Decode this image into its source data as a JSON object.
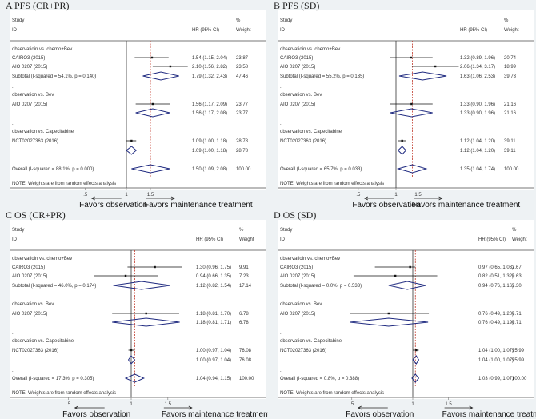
{
  "colors": {
    "diamond": "#1f2a80",
    "ref_line": "#c0392b",
    "ci": "#111111",
    "background": "#eef2f4"
  },
  "chart_data": [
    {
      "type": "forest",
      "title": "A  PFS  (CR+PR)",
      "header": {
        "study": "Study",
        "id": "ID",
        "hr": "HR (95% CI)",
        "pct": "%",
        "weight": "Weight"
      },
      "xticks": [
        {
          "v": 0.5,
          "label": ".5"
        },
        {
          "v": 1,
          "label": "1"
        },
        {
          "v": 1.5,
          "label": "1.5"
        }
      ],
      "xscale": "log",
      "favors_left": "Favors observation",
      "favors_right": "Favors maintenance treatment",
      "note": "NOTE: Weights are from random effects analysis",
      "rows": [
        {
          "type": "group",
          "label": "observatioin vs. chemo+Bev"
        },
        {
          "type": "study",
          "label": "CAIRO3 (2015)",
          "hr": 1.54,
          "lo": 1.15,
          "hi": 2.04,
          "text": "1.54 (1.15, 2.04)",
          "weight": "23.87"
        },
        {
          "type": "study",
          "label": "AIO 0207 (2015)",
          "hr": 2.1,
          "lo": 1.56,
          "hi": 2.82,
          "text": "2.10 (1.56, 2.82)",
          "weight": "23.58"
        },
        {
          "type": "subtotal",
          "label": "Subtotal  (I-squared = 54.1%, p = 0.140)",
          "hr": 1.79,
          "lo": 1.32,
          "hi": 2.43,
          "text": "1.79 (1.32, 2.43)",
          "weight": "47.46"
        },
        {
          "type": "spacer",
          "label": "."
        },
        {
          "type": "group",
          "label": "observation vs. Bev"
        },
        {
          "type": "study",
          "label": "AIO 0207 (2015)",
          "hr": 1.56,
          "lo": 1.17,
          "hi": 2.09,
          "text": "1.56 (1.17, 2.09)",
          "weight": "23.77"
        },
        {
          "type": "subtotal",
          "label": "",
          "hr": 1.56,
          "lo": 1.17,
          "hi": 2.08,
          "text": "1.56 (1.17, 2.08)",
          "weight": "23.77"
        },
        {
          "type": "spacer",
          "label": "."
        },
        {
          "type": "group",
          "label": "observation vs.  Capecitabine"
        },
        {
          "type": "study",
          "label": "NCT02027363 (2016)",
          "hr": 1.09,
          "lo": 1.0,
          "hi": 1.18,
          "text": "1.09 (1.00, 1.18)",
          "weight": "28.78"
        },
        {
          "type": "subtotal",
          "label": "",
          "hr": 1.09,
          "lo": 1.0,
          "hi": 1.18,
          "text": "1.09 (1.00, 1.18)",
          "weight": "28.78"
        },
        {
          "type": "spacer",
          "label": "."
        },
        {
          "type": "overall",
          "label": "Overall  (I-squared = 88.1%, p = 0.000)",
          "hr": 1.5,
          "lo": 1.09,
          "hi": 2.08,
          "text": "1.50 (1.09, 2.08)",
          "weight": "100.00"
        }
      ]
    },
    {
      "type": "forest",
      "title": "B  PFS  (SD)",
      "header": {
        "study": "Study",
        "id": "ID",
        "hr": "HR (95% CI)",
        "pct": "%",
        "weight": "Weight"
      },
      "xticks": [
        {
          "v": 0.5,
          "label": ".5"
        },
        {
          "v": 1,
          "label": "1"
        },
        {
          "v": 1.5,
          "label": "1.5"
        }
      ],
      "xscale": "log",
      "favors_left": "Favors observation",
      "favors_right": "Favors maintenance treatment",
      "note": "NOTE: Weights are from random effects analysis",
      "rows": [
        {
          "type": "group",
          "label": "observatioin vs. chemo+Bev"
        },
        {
          "type": "study",
          "label": "CAIRO3 (2015)",
          "hr": 1.32,
          "lo": 0.89,
          "hi": 1.96,
          "text": "1.32 (0.89, 1.96)",
          "weight": "20.74"
        },
        {
          "type": "study",
          "label": "AIO 0207 (2015)",
          "hr": 2.06,
          "lo": 1.34,
          "hi": 3.17,
          "text": "2.06 (1.34, 3.17)",
          "weight": "18.99"
        },
        {
          "type": "subtotal",
          "label": "Subtotal  (I-squared = 55.2%, p = 0.135)",
          "hr": 1.63,
          "lo": 1.06,
          "hi": 2.53,
          "text": "1.63 (1.06, 2.53)",
          "weight": "39.73"
        },
        {
          "type": "spacer",
          "label": "."
        },
        {
          "type": "group",
          "label": "observation vs. Bev"
        },
        {
          "type": "study",
          "label": "AIO 0207 (2015)",
          "hr": 1.33,
          "lo": 0.9,
          "hi": 1.96,
          "text": "1.33 (0.90, 1.96)",
          "weight": "21.16"
        },
        {
          "type": "subtotal",
          "label": "",
          "hr": 1.33,
          "lo": 0.9,
          "hi": 1.96,
          "text": "1.33 (0.90, 1.96)",
          "weight": "21.16"
        },
        {
          "type": "spacer",
          "label": "."
        },
        {
          "type": "group",
          "label": "observation vs.  Capecitabine"
        },
        {
          "type": "study",
          "label": "NCT02027363 (2016)",
          "hr": 1.12,
          "lo": 1.04,
          "hi": 1.2,
          "text": "1.12 (1.04, 1.20)",
          "weight": "39.11"
        },
        {
          "type": "subtotal",
          "label": "",
          "hr": 1.12,
          "lo": 1.04,
          "hi": 1.2,
          "text": "1.12 (1.04, 1.20)",
          "weight": "39.11"
        },
        {
          "type": "spacer",
          "label": "."
        },
        {
          "type": "overall",
          "label": "Overall  (I-squared = 65.7%, p = 0.033)",
          "hr": 1.35,
          "lo": 1.04,
          "hi": 1.74,
          "text": "1.35 (1.04, 1.74)",
          "weight": "100.00"
        }
      ]
    },
    {
      "type": "forest",
      "title": "C  OS  (CR+PR)",
      "header": {
        "study": "Study",
        "id": "ID",
        "hr": "HR (95% CI)",
        "pct": "%",
        "weight": "Weight"
      },
      "xticks": [
        {
          "v": 0.5,
          "label": ".5"
        },
        {
          "v": 1,
          "label": "1"
        },
        {
          "v": 1.5,
          "label": "1.5"
        }
      ],
      "xscale": "log",
      "favors_left": "Favors observation",
      "favors_right": "Favors maintenance treatment",
      "note": "NOTE: Weights are from random effects analysis",
      "rows": [
        {
          "type": "group",
          "label": "observatioin vs. chemo+Bev"
        },
        {
          "type": "study",
          "label": "CAIRO3 (2015)",
          "hr": 1.3,
          "lo": 0.96,
          "hi": 1.75,
          "text": "1.30 (0.96, 1.75)",
          "weight": "9.91"
        },
        {
          "type": "study",
          "label": "AIO 0207 (2015)",
          "hr": 0.94,
          "lo": 0.66,
          "hi": 1.35,
          "text": "0.94 (0.66, 1.35)",
          "weight": "7.23"
        },
        {
          "type": "subtotal",
          "label": "Subtotal  (I-squared = 46.0%, p = 0.174)",
          "hr": 1.12,
          "lo": 0.82,
          "hi": 1.54,
          "text": "1.12 (0.82, 1.54)",
          "weight": "17.14"
        },
        {
          "type": "spacer",
          "label": "."
        },
        {
          "type": "group",
          "label": "observation vs. Bev"
        },
        {
          "type": "study",
          "label": "AIO 0207 (2015)",
          "hr": 1.18,
          "lo": 0.81,
          "hi": 1.7,
          "text": "1.18 (0.81, 1.70)",
          "weight": "6.78"
        },
        {
          "type": "subtotal",
          "label": "",
          "hr": 1.18,
          "lo": 0.81,
          "hi": 1.71,
          "text": "1.18 (0.81, 1.71)",
          "weight": "6.78"
        },
        {
          "type": "spacer",
          "label": "."
        },
        {
          "type": "group",
          "label": "observation vs.  Capecitabine"
        },
        {
          "type": "study",
          "label": "NCT02027363 (2016)",
          "hr": 1.0,
          "lo": 0.97,
          "hi": 1.04,
          "text": "1.00 (0.97, 1.04)",
          "weight": "76.08"
        },
        {
          "type": "subtotal",
          "label": "",
          "hr": 1.0,
          "lo": 0.97,
          "hi": 1.04,
          "text": "1.00 (0.97, 1.04)",
          "weight": "76.08"
        },
        {
          "type": "spacer",
          "label": "."
        },
        {
          "type": "overall",
          "label": "Overall  (I-squared = 17.3%, p = 0.305)",
          "hr": 1.04,
          "lo": 0.94,
          "hi": 1.15,
          "text": "1.04 (0.94, 1.15)",
          "weight": "100.00"
        }
      ]
    },
    {
      "type": "forest",
      "title": "D  OS  (SD)",
      "header": {
        "study": "Study",
        "id": "ID",
        "hr": "HR (95% CI)",
        "pct": "%",
        "weight": "Weight"
      },
      "xticks": [
        {
          "v": 0.5,
          "label": ".5"
        },
        {
          "v": 1,
          "label": "1"
        },
        {
          "v": 1.5,
          "label": "1.5"
        }
      ],
      "xscale": "log",
      "favors_left": "Favors observation",
      "favors_right": "Favors maintenance treatment",
      "note": "NOTE: Weights are from random effects analysis",
      "rows": [
        {
          "type": "group",
          "label": "observatioin vs. chemo+Bev"
        },
        {
          "type": "study",
          "label": "CAIRO3 (2015)",
          "hr": 0.97,
          "lo": 0.65,
          "hi": 1.03,
          "text": "0.97 (0.65, 1.03)",
          "weight": "2.67"
        },
        {
          "type": "study",
          "label": "AIO 0207 (2015)",
          "hr": 0.82,
          "lo": 0.51,
          "hi": 1.32,
          "text": "0.82 (0.51, 1.32)",
          "weight": "0.63"
        },
        {
          "type": "subtotal",
          "label": "Subtotal  (I-squared = 0.0%, p = 0.533)",
          "hr": 0.94,
          "lo": 0.76,
          "hi": 1.16,
          "text": "0.94 (0.76, 1.16)",
          "weight": "3.30"
        },
        {
          "type": "spacer",
          "label": "."
        },
        {
          "type": "group",
          "label": "observation vs. Bev"
        },
        {
          "type": "study",
          "label": "AIO 0207 (2015)",
          "hr": 0.76,
          "lo": 0.49,
          "hi": 1.2,
          "text": "0.76 (0.49, 1.20)",
          "weight": "0.71"
        },
        {
          "type": "subtotal",
          "label": "",
          "hr": 0.76,
          "lo": 0.49,
          "hi": 1.19,
          "text": "0.76 (0.49, 1.19)",
          "weight": "0.71"
        },
        {
          "type": "spacer",
          "label": "."
        },
        {
          "type": "group",
          "label": "observation vs.  Capecitabine"
        },
        {
          "type": "study",
          "label": "NCT02027363 (2016)",
          "hr": 1.04,
          "lo": 1.0,
          "hi": 1.07,
          "text": "1.04 (1.00, 1.07)",
          "weight": "95.99"
        },
        {
          "type": "subtotal",
          "label": "",
          "hr": 1.04,
          "lo": 1.0,
          "hi": 1.07,
          "text": "1.04 (1.00, 1.07)",
          "weight": "95.99"
        },
        {
          "type": "spacer",
          "label": "."
        },
        {
          "type": "overall",
          "label": "Overall  (I-squared = 0.8%, p = 0.388)",
          "hr": 1.03,
          "lo": 0.99,
          "hi": 1.07,
          "text": "1.03 (0.99, 1.07)",
          "weight": "100.00"
        }
      ]
    }
  ]
}
